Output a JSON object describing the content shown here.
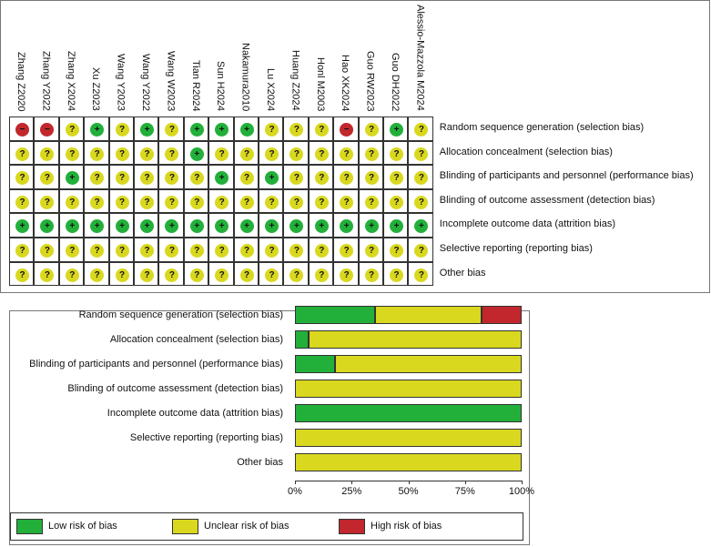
{
  "colors": {
    "low": "#22b03a",
    "unclear": "#d9d81f",
    "high": "#c1272d"
  },
  "symbols": {
    "low": "+",
    "unclear": "?",
    "high": "−"
  },
  "studies": [
    "Zhang Z2020",
    "Zhang Y2022",
    "Zhang X2024",
    "Xu Z2023",
    "Wang Y2023",
    "Wang Y2022",
    "Wang W2023",
    "Tian R2024",
    "Sun H2024",
    "Nakamura2010",
    "Lu X2024",
    "Huang Z2024",
    "Honl M2003",
    "Hao XK2024",
    "Guo RW2023",
    "Guo DH2022",
    "Alessio-Mazzola M2024"
  ],
  "domains": [
    "Random sequence generation (selection bias)",
    "Allocation concealment (selection bias)",
    "Blinding of participants and personnel (performance bias)",
    "Blinding of outcome assessment (detection bias)",
    "Incomplete outcome data (attrition bias)",
    "Selective reporting (reporting bias)",
    "Other bias"
  ],
  "judgements": [
    [
      "high",
      "high",
      "unclear",
      "low",
      "unclear",
      "low",
      "unclear",
      "low",
      "low",
      "low",
      "unclear",
      "unclear",
      "unclear",
      "high",
      "unclear",
      "low",
      "unclear"
    ],
    [
      "unclear",
      "unclear",
      "unclear",
      "unclear",
      "unclear",
      "unclear",
      "unclear",
      "low",
      "unclear",
      "unclear",
      "unclear",
      "unclear",
      "unclear",
      "unclear",
      "unclear",
      "unclear",
      "unclear"
    ],
    [
      "unclear",
      "unclear",
      "low",
      "unclear",
      "unclear",
      "unclear",
      "unclear",
      "unclear",
      "low",
      "unclear",
      "low",
      "unclear",
      "unclear",
      "unclear",
      "unclear",
      "unclear",
      "unclear"
    ],
    [
      "unclear",
      "unclear",
      "unclear",
      "unclear",
      "unclear",
      "unclear",
      "unclear",
      "unclear",
      "unclear",
      "unclear",
      "unclear",
      "unclear",
      "unclear",
      "unclear",
      "unclear",
      "unclear",
      "unclear"
    ],
    [
      "low",
      "low",
      "low",
      "low",
      "low",
      "low",
      "low",
      "low",
      "low",
      "low",
      "low",
      "low",
      "low",
      "low",
      "low",
      "low",
      "low"
    ],
    [
      "unclear",
      "unclear",
      "unclear",
      "unclear",
      "unclear",
      "unclear",
      "unclear",
      "unclear",
      "unclear",
      "unclear",
      "unclear",
      "unclear",
      "unclear",
      "unclear",
      "unclear",
      "unclear",
      "unclear"
    ],
    [
      "unclear",
      "unclear",
      "unclear",
      "unclear",
      "unclear",
      "unclear",
      "unclear",
      "unclear",
      "unclear",
      "unclear",
      "unclear",
      "unclear",
      "unclear",
      "unclear",
      "unclear",
      "unclear",
      "unclear"
    ]
  ],
  "chart_data": {
    "type": "bar",
    "orientation": "horizontal-stacked",
    "categories": [
      "Random sequence generation (selection bias)",
      "Allocation concealment (selection bias)",
      "Blinding of participants and personnel (performance bias)",
      "Blinding of outcome assessment (detection bias)",
      "Incomplete outcome data (attrition bias)",
      "Selective reporting (reporting bias)",
      "Other bias"
    ],
    "series": [
      {
        "name": "Low risk of bias",
        "key": "low",
        "values": [
          35.3,
          5.9,
          17.6,
          0,
          100,
          0,
          0
        ]
      },
      {
        "name": "Unclear risk of bias",
        "key": "unclear",
        "values": [
          47.1,
          94.1,
          82.4,
          100,
          0,
          100,
          100
        ]
      },
      {
        "name": "High risk of bias",
        "key": "high",
        "values": [
          17.6,
          0,
          0,
          0,
          0,
          0,
          0
        ]
      }
    ],
    "xticks": [
      "0%",
      "25%",
      "50%",
      "75%",
      "100%"
    ],
    "xlim": [
      0,
      100
    ],
    "legend": "bottom"
  }
}
